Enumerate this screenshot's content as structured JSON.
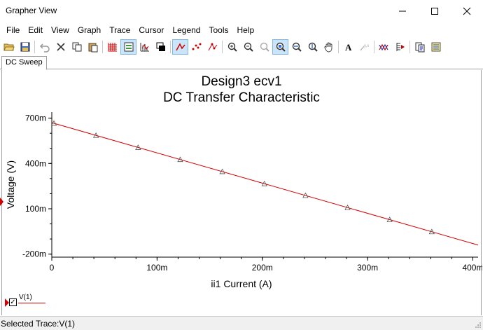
{
  "window": {
    "title": "Grapher View",
    "controls": {
      "minimize": "—",
      "maximize": "☐",
      "close": "✕"
    }
  },
  "menu": [
    "File",
    "Edit",
    "View",
    "Graph",
    "Trace",
    "Cursor",
    "Legend",
    "Tools",
    "Help"
  ],
  "toolbar": {
    "items": [
      "open-folder-icon",
      "save-icon",
      "undo-icon",
      "delete-icon",
      "copy-icon",
      "paste-icon",
      "grid-icon",
      "legend-icon",
      "fine-grid-icon",
      "overlay-icon",
      "cursor-icon",
      "data-points-icon",
      "peak-cursor-icon",
      "zoom-in-icon",
      "zoom-out-icon",
      "zoom-fit-icon",
      "zoom-area-icon",
      "zoom-x-icon",
      "zoom-y-icon",
      "pan-hand-icon",
      "text-icon",
      "label-icon",
      "trace-icon",
      "marker-icon",
      "export-icon",
      "properties-icon"
    ]
  },
  "tabs": [
    "DC Sweep"
  ],
  "chart_data": {
    "type": "line",
    "title": "Design3 ecv1",
    "subtitle": "DC Transfer Characteristic",
    "xlabel": "ii1 Current (A)",
    "ylabel": "Voltage (V)",
    "x_ticks": [
      "0",
      "100m",
      "200m",
      "300m",
      "400m"
    ],
    "y_ticks": [
      "700m",
      "400m",
      "100m",
      "-200m"
    ],
    "xlim": [
      0,
      0.405
    ],
    "ylim": [
      -0.22,
      0.74
    ],
    "grid": false,
    "series": [
      {
        "name": "V(1)",
        "color": "#d40000",
        "x": [
          0,
          0.405
        ],
        "y": [
          0.67,
          -0.14
        ],
        "markers_x": [
          0.002,
          0.042,
          0.082,
          0.122,
          0.162,
          0.202,
          0.241,
          0.281,
          0.321,
          0.361
        ],
        "markers_y": [
          0.666,
          0.586,
          0.506,
          0.426,
          0.346,
          0.266,
          0.188,
          0.108,
          0.028,
          -0.052
        ]
      }
    ]
  },
  "legend": {
    "label": "V(1)",
    "checked": "✓"
  },
  "status": {
    "text": "Selected Trace:V(1)"
  }
}
